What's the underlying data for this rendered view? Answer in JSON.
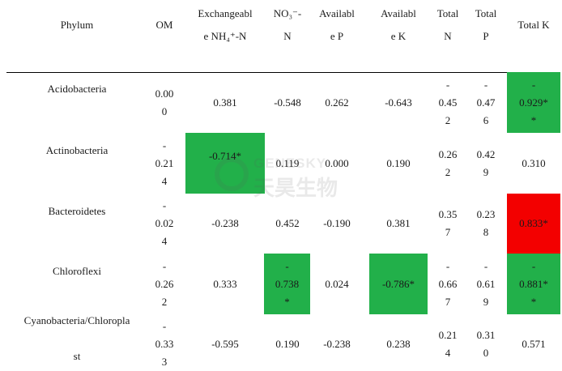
{
  "headers": {
    "phylum": "Phylum",
    "om": "OM",
    "nh4": "Exchangeabl\ne NH₄⁺-N",
    "no3": "NO₃⁻-\nN",
    "avp": "Availabl\ne P",
    "avk": "Availabl\ne K",
    "tn": "Total\nN",
    "tp": "Total\nP",
    "tk": "Total K"
  },
  "rows": [
    {
      "phylum": "Acidobacteria",
      "om": "0.00\n0",
      "nh4": "0.381",
      "no3": "-0.548",
      "avp": "0.262",
      "avk": "-0.643",
      "tn": "-\n0.45\n2",
      "tp": "-\n0.47\n6",
      "tk": "-\n0.929*\n*"
    },
    {
      "phylum": "Actinobacteria",
      "om": "-\n0.21\n4",
      "nh4": "-0.714*",
      "no3": "0.119",
      "avp": "0.000",
      "avk": "0.190",
      "tn": "0.26\n2",
      "tp": "0.42\n9",
      "tk": "0.310"
    },
    {
      "phylum": "Bacteroidetes",
      "om": "-\n0.02\n4",
      "nh4": "-0.238",
      "no3": "0.452",
      "avp": "-0.190",
      "avk": "0.381",
      "tn": "0.35\n7",
      "tp": "0.23\n8",
      "tk": "0.833*"
    },
    {
      "phylum": "Chloroflexi",
      "om": "-\n0.26\n2",
      "nh4": "0.333",
      "no3": "-\n0.738\n*",
      "avp": "0.024",
      "avk": "-0.786*",
      "tn": "-\n0.66\n7",
      "tp": "-\n0.61\n9",
      "tk": "-\n0.881*\n*"
    },
    {
      "phylum": "Cyanobacteria/Chloropla\n\nst",
      "om": "-\n0.33\n3",
      "nh4": "-0.595",
      "no3": "0.190",
      "avp": "-0.238",
      "avk": "0.238",
      "tn": "0.21\n4",
      "tp": "0.31\n0",
      "tk": "0.571"
    }
  ],
  "highlight_colors": {
    "positive": "#f30000",
    "negative": "#22b04a"
  },
  "watermark": {
    "en": "GENESKY",
    "cn": "天昊生物"
  }
}
